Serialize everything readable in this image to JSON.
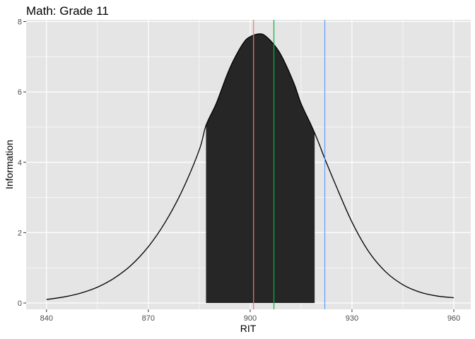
{
  "chart_data": {
    "type": "area",
    "title": "Math: Grade 11",
    "xlabel": "RIT",
    "ylabel": "Information",
    "xlim": [
      834,
      965
    ],
    "ylim": [
      -0.18,
      8.05
    ],
    "x_ticks": [
      840,
      870,
      900,
      930,
      960
    ],
    "y_ticks": [
      0,
      2,
      4,
      6,
      8
    ],
    "grid": true,
    "legend": "none",
    "curve": {
      "x": [
        840,
        845,
        850,
        855,
        860,
        865,
        870,
        875,
        880,
        885,
        887,
        890,
        893,
        895,
        898,
        900,
        903,
        905,
        908,
        910,
        913,
        915,
        918,
        920,
        922,
        925,
        930,
        935,
        940,
        945,
        950,
        955,
        960
      ],
      "y": [
        0.1,
        0.17,
        0.28,
        0.45,
        0.71,
        1.08,
        1.6,
        2.3,
        3.2,
        4.35,
        5.05,
        5.67,
        6.44,
        6.88,
        7.39,
        7.57,
        7.65,
        7.55,
        7.22,
        6.88,
        6.22,
        5.67,
        5.05,
        4.6,
        4.1,
        3.4,
        2.3,
        1.45,
        0.88,
        0.52,
        0.31,
        0.2,
        0.15
      ]
    },
    "shaded_interval": {
      "from": 887,
      "to": 919
    },
    "vlines": [
      {
        "x": 901,
        "color": "#F8766D"
      },
      {
        "x": 907,
        "color": "#00BA38"
      },
      {
        "x": 922,
        "color": "#619CFF"
      }
    ],
    "curve_color": "#000000",
    "fill_color": "#262626",
    "panel_color": "#E5E5E5",
    "grid_color": "#FFFFFF"
  }
}
